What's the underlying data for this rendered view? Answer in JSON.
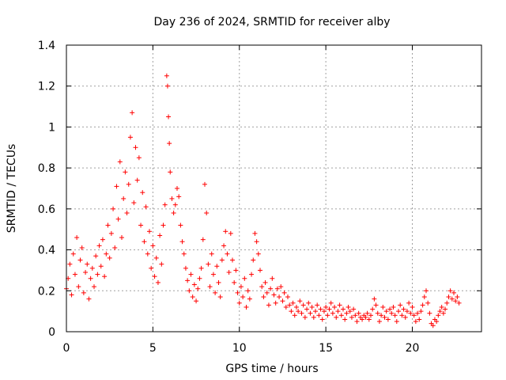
{
  "chart_data": {
    "type": "scatter",
    "title": "Day 236 of 2024, SRMTID for receiver alby",
    "xlabel": "GPS time / hours",
    "ylabel": "SRMTID / TECUs",
    "xlim": [
      0,
      24
    ],
    "ylim": [
      0,
      1.4
    ],
    "xticks": [
      0,
      5,
      10,
      15,
      20
    ],
    "xtick_labels": [
      "0",
      "5",
      "10",
      "15",
      "20"
    ],
    "yticks": [
      0,
      0.2,
      0.4,
      0.6,
      0.8,
      1.0,
      1.2,
      1.4
    ],
    "ytick_labels": [
      "0",
      "0.2",
      "0.4",
      "0.6",
      "0.8",
      "1",
      "1.2",
      "1.4"
    ],
    "grid": true,
    "marker": "+",
    "color": "#ff0000",
    "series": [
      {
        "name": "SRMTID",
        "points": [
          [
            0.0,
            0.21
          ],
          [
            0.1,
            0.26
          ],
          [
            0.2,
            0.33
          ],
          [
            0.3,
            0.18
          ],
          [
            0.4,
            0.38
          ],
          [
            0.5,
            0.28
          ],
          [
            0.6,
            0.46
          ],
          [
            0.7,
            0.22
          ],
          [
            0.8,
            0.35
          ],
          [
            0.9,
            0.41
          ],
          [
            1.0,
            0.19
          ],
          [
            1.1,
            0.29
          ],
          [
            1.2,
            0.33
          ],
          [
            1.3,
            0.16
          ],
          [
            1.4,
            0.26
          ],
          [
            1.5,
            0.31
          ],
          [
            1.6,
            0.22
          ],
          [
            1.7,
            0.37
          ],
          [
            1.8,
            0.28
          ],
          [
            1.9,
            0.42
          ],
          [
            2.0,
            0.32
          ],
          [
            2.1,
            0.45
          ],
          [
            2.2,
            0.27
          ],
          [
            2.3,
            0.38
          ],
          [
            2.4,
            0.52
          ],
          [
            2.5,
            0.36
          ],
          [
            2.6,
            0.48
          ],
          [
            2.7,
            0.6
          ],
          [
            2.8,
            0.41
          ],
          [
            2.9,
            0.71
          ],
          [
            3.0,
            0.55
          ],
          [
            3.1,
            0.83
          ],
          [
            3.2,
            0.46
          ],
          [
            3.3,
            0.65
          ],
          [
            3.4,
            0.78
          ],
          [
            3.5,
            0.58
          ],
          [
            3.6,
            0.72
          ],
          [
            3.7,
            0.95
          ],
          [
            3.8,
            1.07
          ],
          [
            3.9,
            0.63
          ],
          [
            4.0,
            0.9
          ],
          [
            4.1,
            0.74
          ],
          [
            4.2,
            0.85
          ],
          [
            4.3,
            0.52
          ],
          [
            4.4,
            0.68
          ],
          [
            4.5,
            0.44
          ],
          [
            4.6,
            0.61
          ],
          [
            4.7,
            0.38
          ],
          [
            4.8,
            0.49
          ],
          [
            4.9,
            0.31
          ],
          [
            5.0,
            0.42
          ],
          [
            5.1,
            0.27
          ],
          [
            5.2,
            0.36
          ],
          [
            5.3,
            0.24
          ],
          [
            5.4,
            0.47
          ],
          [
            5.5,
            0.33
          ],
          [
            5.6,
            0.52
          ],
          [
            5.7,
            0.62
          ],
          [
            5.8,
            1.25
          ],
          [
            5.85,
            1.2
          ],
          [
            5.9,
            1.05
          ],
          [
            5.95,
            0.92
          ],
          [
            6.0,
            0.78
          ],
          [
            6.1,
            0.65
          ],
          [
            6.2,
            0.58
          ],
          [
            6.3,
            0.62
          ],
          [
            6.4,
            0.7
          ],
          [
            6.5,
            0.66
          ],
          [
            6.6,
            0.52
          ],
          [
            6.7,
            0.44
          ],
          [
            6.8,
            0.38
          ],
          [
            6.9,
            0.31
          ],
          [
            7.0,
            0.25
          ],
          [
            7.1,
            0.2
          ],
          [
            7.2,
            0.28
          ],
          [
            7.3,
            0.17
          ],
          [
            7.4,
            0.23
          ],
          [
            7.5,
            0.15
          ],
          [
            7.6,
            0.21
          ],
          [
            7.7,
            0.26
          ],
          [
            7.8,
            0.31
          ],
          [
            7.9,
            0.45
          ],
          [
            8.0,
            0.72
          ],
          [
            8.1,
            0.58
          ],
          [
            8.2,
            0.33
          ],
          [
            8.3,
            0.22
          ],
          [
            8.4,
            0.38
          ],
          [
            8.5,
            0.28
          ],
          [
            8.6,
            0.19
          ],
          [
            8.7,
            0.32
          ],
          [
            8.8,
            0.24
          ],
          [
            8.9,
            0.17
          ],
          [
            9.0,
            0.35
          ],
          [
            9.1,
            0.42
          ],
          [
            9.2,
            0.49
          ],
          [
            9.3,
            0.38
          ],
          [
            9.4,
            0.29
          ],
          [
            9.5,
            0.48
          ],
          [
            9.6,
            0.35
          ],
          [
            9.7,
            0.24
          ],
          [
            9.8,
            0.3
          ],
          [
            9.9,
            0.19
          ],
          [
            10.0,
            0.14
          ],
          [
            10.1,
            0.22
          ],
          [
            10.2,
            0.17
          ],
          [
            10.3,
            0.26
          ],
          [
            10.4,
            0.12
          ],
          [
            10.5,
            0.2
          ],
          [
            10.6,
            0.16
          ],
          [
            10.7,
            0.28
          ],
          [
            10.8,
            0.35
          ],
          [
            10.9,
            0.48
          ],
          [
            11.0,
            0.44
          ],
          [
            11.1,
            0.38
          ],
          [
            11.2,
            0.3
          ],
          [
            11.3,
            0.22
          ],
          [
            11.4,
            0.17
          ],
          [
            11.5,
            0.24
          ],
          [
            11.6,
            0.19
          ],
          [
            11.7,
            0.13
          ],
          [
            11.8,
            0.21
          ],
          [
            11.9,
            0.26
          ],
          [
            12.0,
            0.18
          ],
          [
            12.1,
            0.14
          ],
          [
            12.2,
            0.21
          ],
          [
            12.3,
            0.17
          ],
          [
            12.4,
            0.22
          ],
          [
            12.5,
            0.15
          ],
          [
            12.6,
            0.19
          ],
          [
            12.7,
            0.12
          ],
          [
            12.8,
            0.17
          ],
          [
            12.9,
            0.13
          ],
          [
            13.0,
            0.1
          ],
          [
            13.1,
            0.14
          ],
          [
            13.2,
            0.08
          ],
          [
            13.3,
            0.12
          ],
          [
            13.4,
            0.1
          ],
          [
            13.5,
            0.15
          ],
          [
            13.6,
            0.09
          ],
          [
            13.7,
            0.13
          ],
          [
            13.8,
            0.07
          ],
          [
            13.9,
            0.11
          ],
          [
            14.0,
            0.14
          ],
          [
            14.1,
            0.09
          ],
          [
            14.2,
            0.12
          ],
          [
            14.3,
            0.07
          ],
          [
            14.4,
            0.1
          ],
          [
            14.5,
            0.13
          ],
          [
            14.6,
            0.08
          ],
          [
            14.7,
            0.11
          ],
          [
            14.8,
            0.06
          ],
          [
            14.9,
            0.1
          ],
          [
            15.0,
            0.12
          ],
          [
            15.1,
            0.08
          ],
          [
            15.2,
            0.11
          ],
          [
            15.3,
            0.14
          ],
          [
            15.4,
            0.09
          ],
          [
            15.5,
            0.12
          ],
          [
            15.6,
            0.07
          ],
          [
            15.7,
            0.1
          ],
          [
            15.8,
            0.13
          ],
          [
            15.9,
            0.08
          ],
          [
            16.0,
            0.11
          ],
          [
            16.1,
            0.06
          ],
          [
            16.2,
            0.09
          ],
          [
            16.3,
            0.12
          ],
          [
            16.4,
            0.1
          ],
          [
            16.5,
            0.07
          ],
          [
            16.6,
            0.11
          ],
          [
            16.7,
            0.08
          ],
          [
            16.8,
            0.05
          ],
          [
            16.9,
            0.09
          ],
          [
            17.0,
            0.07
          ],
          [
            17.1,
            0.06
          ],
          [
            17.2,
            0.08
          ],
          [
            17.3,
            0.07
          ],
          [
            17.4,
            0.09
          ],
          [
            17.5,
            0.06
          ],
          [
            17.6,
            0.08
          ],
          [
            17.7,
            0.11
          ],
          [
            17.8,
            0.16
          ],
          [
            17.9,
            0.13
          ],
          [
            18.0,
            0.09
          ],
          [
            18.1,
            0.05
          ],
          [
            18.2,
            0.08
          ],
          [
            18.3,
            0.12
          ],
          [
            18.4,
            0.07
          ],
          [
            18.5,
            0.1
          ],
          [
            18.6,
            0.06
          ],
          [
            18.7,
            0.11
          ],
          [
            18.8,
            0.09
          ],
          [
            18.9,
            0.12
          ],
          [
            19.0,
            0.08
          ],
          [
            19.1,
            0.05
          ],
          [
            19.2,
            0.1
          ],
          [
            19.3,
            0.13
          ],
          [
            19.4,
            0.08
          ],
          [
            19.5,
            0.11
          ],
          [
            19.6,
            0.07
          ],
          [
            19.7,
            0.1
          ],
          [
            19.8,
            0.14
          ],
          [
            19.9,
            0.09
          ],
          [
            20.0,
            0.12
          ],
          [
            20.1,
            0.08
          ],
          [
            20.2,
            0.05
          ],
          [
            20.3,
            0.09
          ],
          [
            20.4,
            0.06
          ],
          [
            20.5,
            0.1
          ],
          [
            20.6,
            0.13
          ],
          [
            20.7,
            0.17
          ],
          [
            20.8,
            0.2
          ],
          [
            20.9,
            0.14
          ],
          [
            21.0,
            0.09
          ],
          [
            21.1,
            0.04
          ],
          [
            21.2,
            0.03
          ],
          [
            21.3,
            0.06
          ],
          [
            21.4,
            0.05
          ],
          [
            21.5,
            0.08
          ],
          [
            21.6,
            0.1
          ],
          [
            21.7,
            0.12
          ],
          [
            21.8,
            0.09
          ],
          [
            21.9,
            0.11
          ],
          [
            22.0,
            0.14
          ],
          [
            22.1,
            0.17
          ],
          [
            22.2,
            0.2
          ],
          [
            22.3,
            0.16
          ],
          [
            22.4,
            0.19
          ],
          [
            22.5,
            0.15
          ],
          [
            22.6,
            0.17
          ],
          [
            22.7,
            0.14
          ]
        ]
      }
    ]
  }
}
